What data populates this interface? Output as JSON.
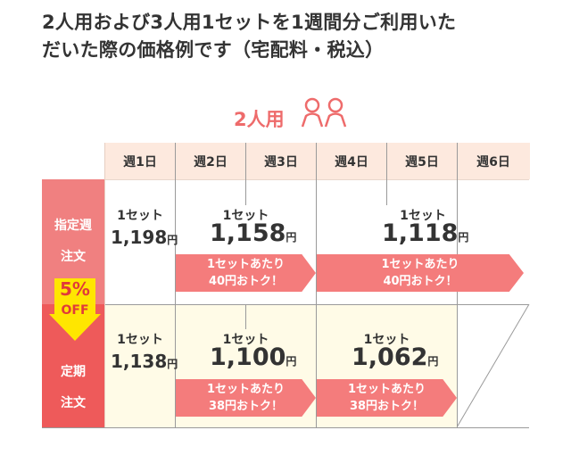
{
  "heading": {
    "line1": "2人用および3人用1セットを1週間分ご利用いた",
    "line2": "だいた際の価格例です（宅配料・税込）"
  },
  "plan_label": "2人用",
  "weeks": [
    "週1日",
    "週2日",
    "週3日",
    "週4日",
    "週5日",
    "週6日"
  ],
  "rows": {
    "designated": {
      "label_line1": "指定週",
      "label_line2": "注文",
      "color": "#f08080",
      "cells": [
        {
          "set": "1セット",
          "price": "1,198",
          "yen": "円"
        },
        {
          "set": "1セット",
          "price": "1,158",
          "yen": "円",
          "arrow_line1": "1セットあたり",
          "arrow_line2": "40円おトク！"
        },
        {
          "set": "1セット",
          "price": "1,118",
          "yen": "円",
          "arrow_line1": "1セットあたり",
          "arrow_line2": "40円おトク！"
        }
      ]
    },
    "regular": {
      "label_line1": "定期",
      "label_line2": "注文",
      "color": "#ee5a5a",
      "cells": [
        {
          "set": "1セット",
          "price": "1,138",
          "yen": "円"
        },
        {
          "set": "1セット",
          "price": "1,100",
          "yen": "円",
          "arrow_line1": "1セットあたり",
          "arrow_line2": "38円おトク！"
        },
        {
          "set": "1セット",
          "price": "1,062",
          "yen": "円",
          "arrow_line1": "1セットあたり",
          "arrow_line2": "38円おトク！"
        }
      ]
    }
  },
  "discount_badge": {
    "percent": "5%",
    "text": "OFF"
  },
  "colors": {
    "accent": "#ee6b6b",
    "header_bg": "#fde9de",
    "arrow": "#f47c7c",
    "regular_bg": "#fffbe7",
    "badge_yellow": "#ffe600"
  }
}
